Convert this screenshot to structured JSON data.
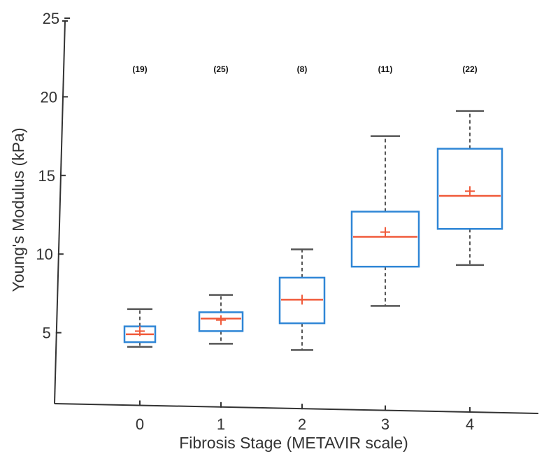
{
  "chart_data": {
    "type": "box",
    "xlabel": "Fibrosis Stage (METAVIR scale)",
    "ylabel": "Young's Modulus (kPa)",
    "categories": [
      "0",
      "1",
      "2",
      "3",
      "4"
    ],
    "counts": [
      "(19)",
      "(25)",
      "(8)",
      "(11)",
      "(22)"
    ],
    "yticks": [
      "5",
      "10",
      "15",
      "20",
      "25"
    ],
    "ylim": [
      0,
      25
    ],
    "grid": false,
    "boxes": [
      {
        "whisker_low": 4.1,
        "q1": 4.4,
        "median": 4.9,
        "q3": 5.4,
        "whisker_high": 6.5,
        "mean": 5.1
      },
      {
        "whisker_low": 4.3,
        "q1": 5.1,
        "median": 5.9,
        "q3": 6.3,
        "whisker_high": 7.4,
        "mean": 5.8
      },
      {
        "whisker_low": 3.9,
        "q1": 5.6,
        "median": 7.1,
        "q3": 8.5,
        "whisker_high": 10.3,
        "mean": 7.1
      },
      {
        "whisker_low": 6.7,
        "q1": 9.2,
        "median": 11.1,
        "q3": 12.7,
        "whisker_high": 17.5,
        "mean": 11.4
      },
      {
        "whisker_low": 9.3,
        "q1": 11.6,
        "median": 13.7,
        "q3": 16.7,
        "whisker_high": 19.1,
        "mean": 14.0
      }
    ],
    "colors": {
      "box": "#2f86d6",
      "median": "#f05a3a",
      "mean": "#f05a3a",
      "whisker": "#555555",
      "axis": "#333333"
    }
  }
}
